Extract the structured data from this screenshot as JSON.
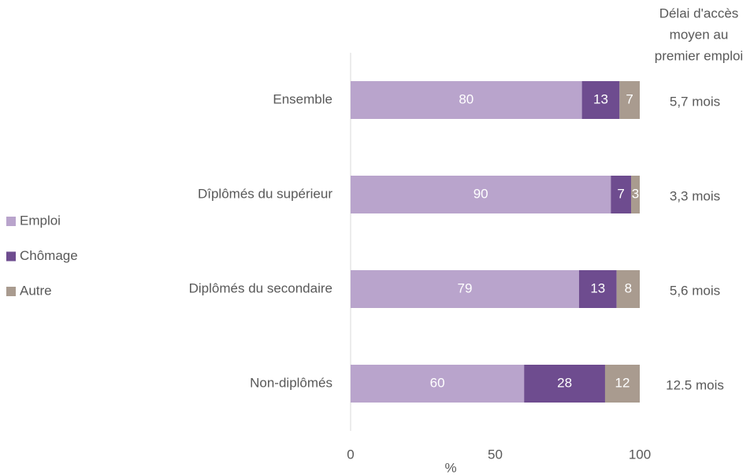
{
  "chart_data": {
    "type": "stacked_bar_horizontal",
    "categories": [
      "Ensemble",
      "Dîplômés du supérieur",
      "Diplômés du secondaire",
      "Non-diplômés"
    ],
    "series": [
      {
        "name": "Emploi",
        "color": "#b9a4cc",
        "values": [
          80,
          90,
          79,
          60
        ]
      },
      {
        "name": "Chômage",
        "color": "#6e4c8f",
        "values": [
          13,
          7,
          13,
          28
        ]
      },
      {
        "name": "Autre",
        "color": "#a99b8f",
        "values": [
          7,
          3,
          8,
          12
        ]
      }
    ],
    "xlim": [
      0,
      100
    ],
    "xticks": [
      0,
      50,
      100
    ],
    "xlabel": "%",
    "annotation_header": [
      "Délai d'accès",
      "moyen au",
      "premier emploi"
    ],
    "annotations": [
      "5,7 mois",
      "3,3 mois",
      "5,6 mois",
      "12.5 mois"
    ],
    "legend": "left"
  }
}
